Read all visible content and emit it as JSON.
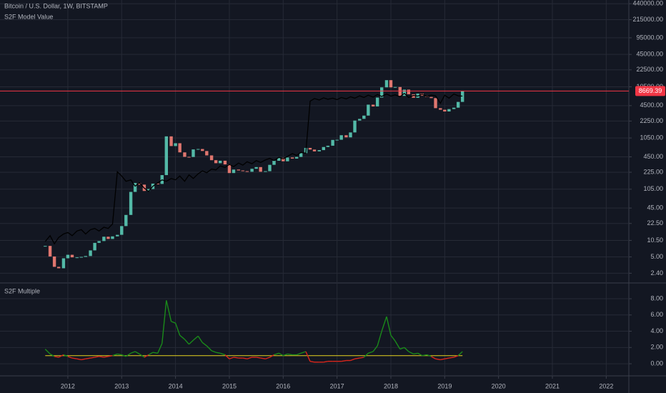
{
  "chart_data": [
    {
      "type": "candlestick",
      "log_scale": true,
      "grid": true,
      "x": [
        2011.58,
        2011.67,
        2011.75,
        2011.83,
        2011.92,
        2012,
        2012.08,
        2012.17,
        2012.25,
        2012.33,
        2012.42,
        2012.5,
        2012.58,
        2012.67,
        2012.75,
        2012.83,
        2012.92,
        2013,
        2013.08,
        2013.17,
        2013.25,
        2013.33,
        2013.42,
        2013.5,
        2013.58,
        2013.67,
        2013.75,
        2013.83,
        2013.92,
        2014,
        2014.08,
        2014.17,
        2014.25,
        2014.33,
        2014.42,
        2014.5,
        2014.58,
        2014.67,
        2014.75,
        2014.83,
        2014.92,
        2015,
        2015.08,
        2015.17,
        2015.25,
        2015.33,
        2015.42,
        2015.5,
        2015.58,
        2015.67,
        2015.75,
        2015.83,
        2015.92,
        2016,
        2016.08,
        2016.17,
        2016.25,
        2016.33,
        2016.42,
        2016.5,
        2016.58,
        2016.67,
        2016.75,
        2016.83,
        2016.92,
        2017,
        2017.08,
        2017.17,
        2017.25,
        2017.33,
        2017.42,
        2017.5,
        2017.58,
        2017.67,
        2017.75,
        2017.83,
        2017.92,
        2018,
        2018.08,
        2018.17,
        2018.25,
        2018.33,
        2018.42,
        2018.5,
        2018.58,
        2018.67,
        2018.75,
        2018.83,
        2018.92,
        2019,
        2019.08,
        2019.17,
        2019.25,
        2019.33
      ],
      "series": [
        {
          "name": "Bitcoin / U.S. Dollar, 1W, BITSTAMP",
          "up_color": "#53b9a7",
          "down_color": "#e0766f",
          "values": [
            8.2,
            5.1,
            3.2,
            3.0,
            4.7,
            5.5,
            4.9,
            4.9,
            5.0,
            5.2,
            6.7,
            9.4,
            10.2,
            12.4,
            11.2,
            12.6,
            13.5,
            20,
            33,
            93,
            139,
            129,
            97,
            106,
            135,
            133,
            198,
            1130,
            730,
            830,
            550,
            450,
            447,
            628,
            640,
            585,
            480,
            387,
            338,
            378,
            320,
            217,
            254,
            244,
            236,
            230,
            263,
            284,
            230,
            236,
            314,
            377,
            430,
            368,
            437,
            416,
            448,
            531,
            673,
            624,
            575,
            609,
            700,
            742,
            963,
            970,
            1190,
            1080,
            1348,
            2300,
            2480,
            2875,
            4703,
            4338,
            6468,
            10233,
            14156,
            10221,
            10397,
            6973,
            9240,
            7494,
            6404,
            7730,
            7033,
            6635,
            6317,
            4017,
            3742,
            3457,
            3854,
            4105,
            5320,
            8669.39
          ]
        },
        {
          "name": "S2F Model Value",
          "color": "#000000",
          "values": [
            10,
            13,
            9,
            12,
            14,
            15,
            13,
            16,
            17,
            14,
            17,
            18,
            16,
            19,
            18,
            22,
            230,
            190,
            150,
            160,
            120,
            140,
            110,
            95,
            120,
            140,
            160,
            150,
            170,
            160,
            190,
            150,
            200,
            170,
            210,
            240,
            220,
            260,
            250,
            300,
            280,
            320,
            290,
            340,
            310,
            360,
            330,
            380,
            350,
            390,
            420,
            380,
            440,
            410,
            460,
            520,
            480,
            550,
            530,
            5500,
            6200,
            5800,
            6400,
            6000,
            6300,
            5900,
            6500,
            6100,
            6700,
            6300,
            7000,
            6500,
            7200,
            6600,
            7400,
            6800,
            7600,
            6900,
            7300,
            6700,
            7800,
            6500,
            7100,
            6900,
            7500,
            6800,
            7200,
            7000,
            5000,
            7200,
            6300,
            7600,
            7000,
            6900
          ]
        }
      ],
      "last_price": 8669.39,
      "last_price_color": "#f23645",
      "xlim": [
        2010.74,
        2022.42
      ],
      "xticks": [
        2012,
        2013,
        2014,
        2015,
        2016,
        2017,
        2018,
        2019,
        2020,
        2021,
        2022
      ],
      "ylim": [
        1.6,
        520000
      ],
      "yticks": [
        {
          "value": 2.4,
          "label": "2.40"
        },
        {
          "value": 5,
          "label": "5.00"
        },
        {
          "value": 10.5,
          "label": "10.50"
        },
        {
          "value": 22.5,
          "label": "22.50"
        },
        {
          "value": 45,
          "label": "45.00"
        },
        {
          "value": 105,
          "label": "105.00"
        },
        {
          "value": 225,
          "label": "225.00"
        },
        {
          "value": 450,
          "label": "450.00"
        },
        {
          "value": 1050,
          "label": "1050.00"
        },
        {
          "value": 2250,
          "label": "2250.00"
        },
        {
          "value": 4500,
          "label": "4500.00"
        },
        {
          "value": 10500,
          "label": "10500.00"
        },
        {
          "value": 22500,
          "label": "22500.00"
        },
        {
          "value": 45000,
          "label": "45000.00"
        },
        {
          "value": 95000,
          "label": "95000.00"
        },
        {
          "value": 215000,
          "label": "215000.00"
        },
        {
          "value": 440000,
          "label": "440000.00"
        }
      ]
    },
    {
      "type": "line",
      "title": "S2F Multiple",
      "grid": true,
      "x": [
        2011.58,
        2011.67,
        2011.75,
        2011.83,
        2011.92,
        2012,
        2012.08,
        2012.17,
        2012.25,
        2012.33,
        2012.42,
        2012.5,
        2012.58,
        2012.67,
        2012.75,
        2012.83,
        2012.92,
        2013,
        2013.08,
        2013.17,
        2013.25,
        2013.33,
        2013.42,
        2013.5,
        2013.58,
        2013.67,
        2013.75,
        2013.83,
        2013.92,
        2014,
        2014.08,
        2014.17,
        2014.25,
        2014.33,
        2014.42,
        2014.5,
        2014.58,
        2014.67,
        2014.75,
        2014.83,
        2014.92,
        2015,
        2015.08,
        2015.17,
        2015.25,
        2015.33,
        2015.42,
        2015.5,
        2015.58,
        2015.67,
        2015.75,
        2015.83,
        2015.92,
        2016,
        2016.08,
        2016.17,
        2016.25,
        2016.33,
        2016.42,
        2016.5,
        2016.58,
        2016.67,
        2016.75,
        2016.83,
        2016.92,
        2017,
        2017.08,
        2017.17,
        2017.25,
        2017.33,
        2017.42,
        2017.5,
        2017.58,
        2017.67,
        2017.75,
        2017.83,
        2017.92,
        2018,
        2018.08,
        2018.17,
        2018.25,
        2018.33,
        2018.42,
        2018.5,
        2018.58,
        2018.67,
        2018.75,
        2018.83,
        2018.92,
        2019,
        2019.08,
        2019.17,
        2019.25,
        2019.33
      ],
      "series": [
        {
          "above_color": "#1a8a1a",
          "below_color": "#d9261c",
          "values": [
            1.8,
            1.2,
            0.9,
            0.8,
            1.1,
            0.9,
            0.7,
            0.6,
            0.5,
            0.6,
            0.7,
            0.8,
            0.9,
            0.8,
            0.9,
            1.0,
            1.2,
            1.1,
            0.9,
            1.3,
            1.5,
            1.2,
            0.8,
            1.1,
            1.4,
            1.3,
            2.5,
            7.8,
            5.2,
            5.0,
            3.5,
            3.0,
            2.4,
            2.9,
            3.4,
            2.6,
            2.2,
            1.6,
            1.4,
            1.3,
            1.1,
            0.6,
            0.8,
            0.7,
            0.7,
            0.6,
            0.8,
            0.8,
            0.7,
            0.6,
            0.8,
            1.1,
            1.3,
            1.0,
            1.2,
            1.1,
            1.1,
            1.3,
            1.5,
            0.3,
            0.2,
            0.2,
            0.2,
            0.3,
            0.3,
            0.3,
            0.3,
            0.4,
            0.4,
            0.6,
            0.7,
            0.8,
            1.3,
            1.5,
            2.2,
            4.0,
            5.8,
            3.5,
            2.8,
            1.8,
            2.0,
            1.5,
            1.2,
            1.3,
            1.0,
            1.1,
            0.9,
            0.6,
            0.5,
            0.6,
            0.7,
            0.8,
            1.0,
            1.5
          ]
        }
      ],
      "threshold": 1,
      "threshold_color": "#e6d21e",
      "xlim": [
        2010.74,
        2022.42
      ],
      "xticks": [
        2012,
        2013,
        2014,
        2015,
        2016,
        2017,
        2018,
        2019,
        2020,
        2021,
        2022
      ],
      "ylim": [
        -1.4,
        9.85
      ],
      "yticks": [
        {
          "value": 0,
          "label": "0.00"
        },
        {
          "value": 2,
          "label": "2.00"
        },
        {
          "value": 4,
          "label": "4.00"
        },
        {
          "value": 6,
          "label": "6.00"
        },
        {
          "value": 8,
          "label": "8.00"
        }
      ]
    }
  ]
}
